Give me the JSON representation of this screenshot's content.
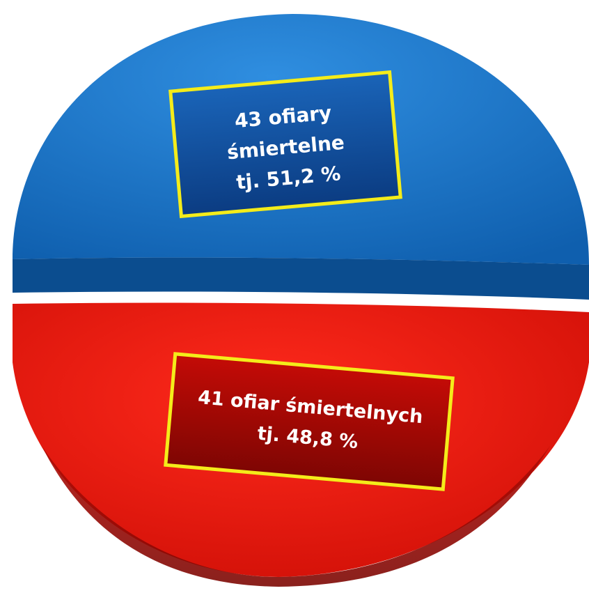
{
  "chart_data": {
    "type": "pie",
    "title": "",
    "slices": [
      {
        "value": 51.2,
        "count": 43,
        "color": "#1673c6",
        "label_lines": [
          "43 ofiary",
          "śmiertelne",
          "tj. 51,2 %"
        ]
      },
      {
        "value": 48.8,
        "count": 41,
        "color": "#e8180f",
        "label_lines": [
          "41 ofiar śmiertelnych",
          "tj. 48,8 %"
        ]
      }
    ],
    "legend": "none",
    "label_box_border_color": "#f4ec1a"
  }
}
